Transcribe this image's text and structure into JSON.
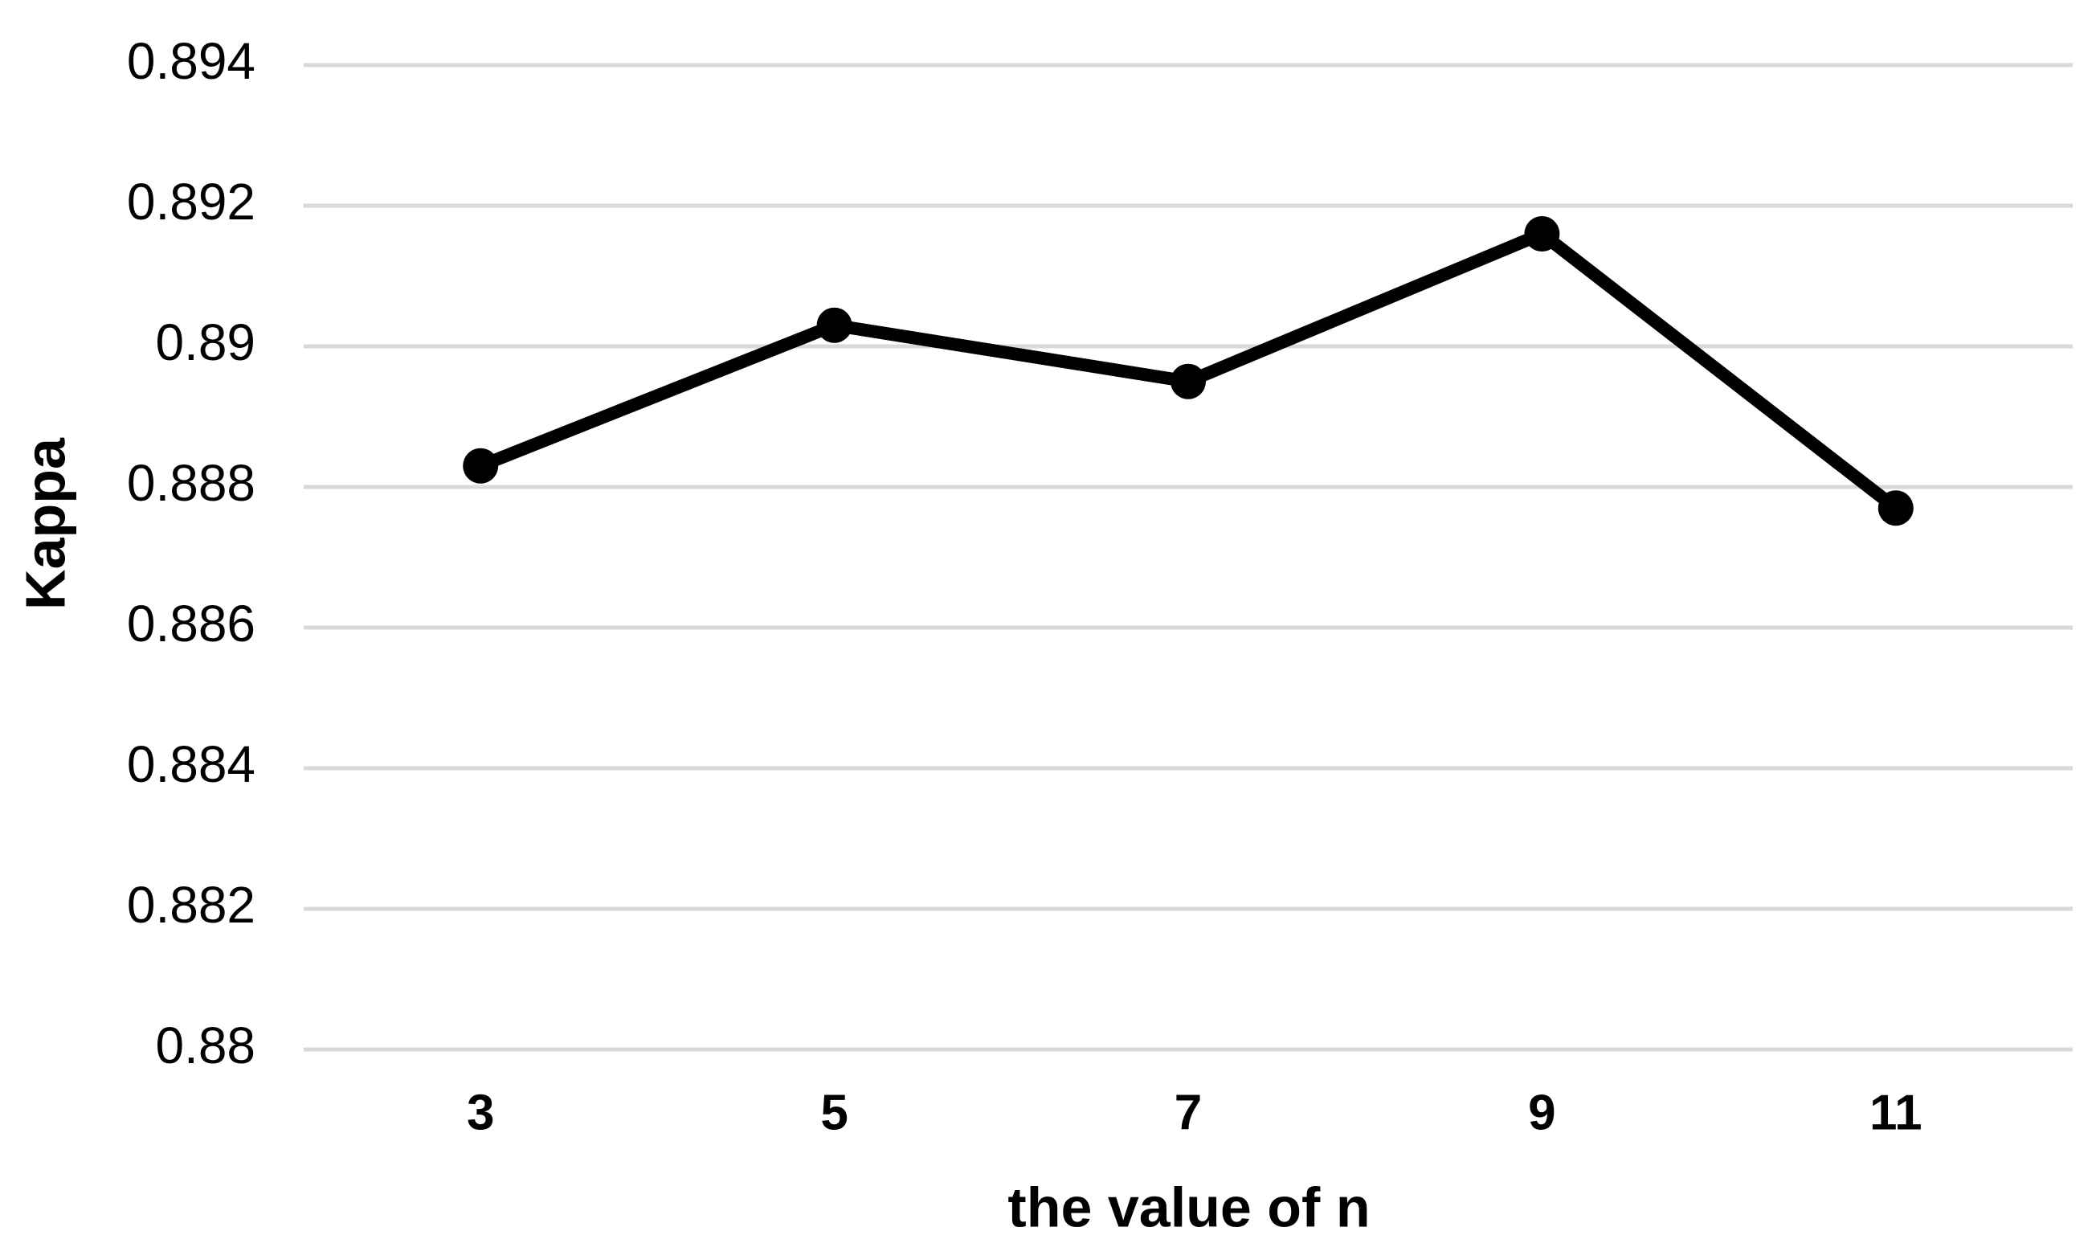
{
  "chart_data": {
    "type": "line",
    "x_label": "the value of n",
    "y_label": "Kappa",
    "categories": [
      "3",
      "5",
      "7",
      "9",
      "11"
    ],
    "series": [
      {
        "name": "Kappa",
        "color": "#000000",
        "values": [
          0.8883,
          0.8903,
          0.8895,
          0.8916,
          0.8877
        ]
      }
    ],
    "ylim": [
      0.88,
      0.894
    ],
    "yticks": [
      0.88,
      0.882,
      0.884,
      0.886,
      0.888,
      0.89,
      0.892,
      0.894
    ],
    "grid": true,
    "grid_color": "#d9d9d9"
  }
}
